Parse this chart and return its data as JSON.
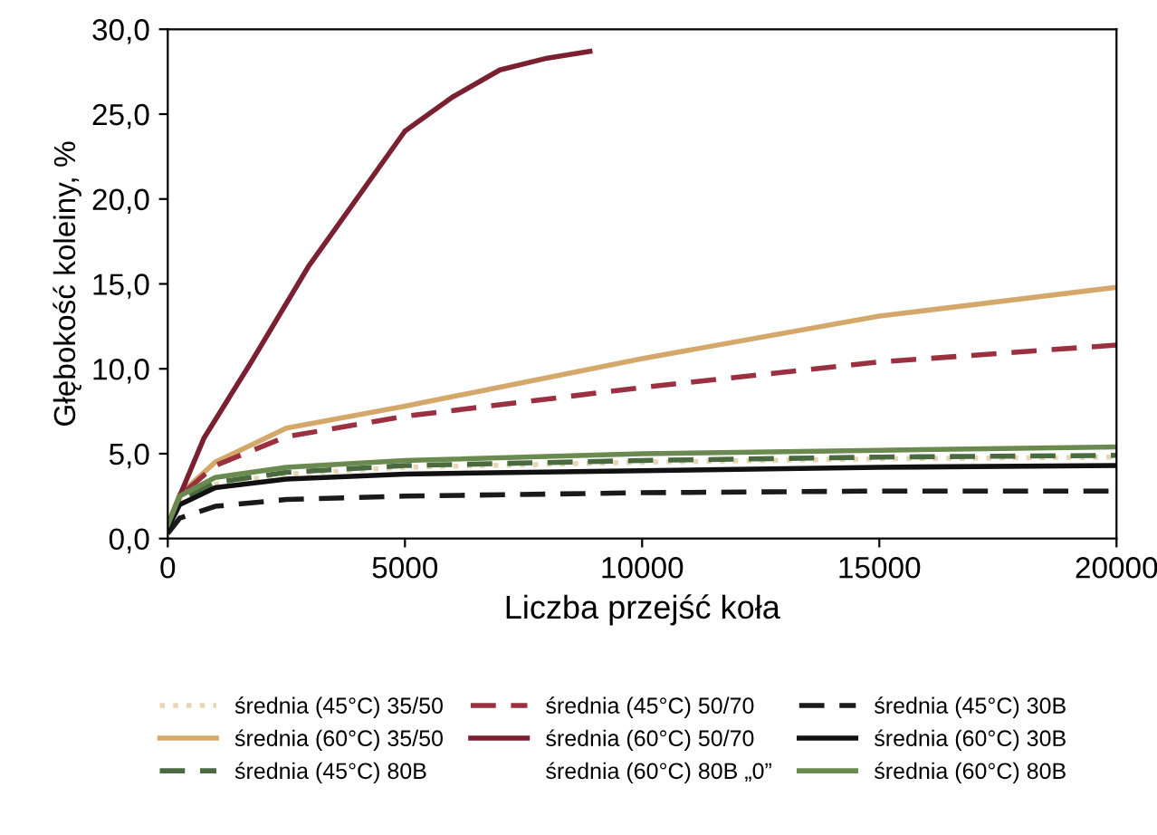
{
  "chart_data": {
    "type": "line",
    "xlabel": "Liczba przejść koła",
    "ylabel": "Głębokość koleiny, %",
    "xlim": [
      0,
      20000
    ],
    "xticks": [
      0,
      5000,
      10000,
      15000,
      20000
    ],
    "ylim": [
      0,
      30
    ],
    "yticks": [
      {
        "value": 0,
        "label": "0,0"
      },
      {
        "value": 5,
        "label": "5,0"
      },
      {
        "value": 10,
        "label": "10,0"
      },
      {
        "value": 15,
        "label": "15,0"
      },
      {
        "value": 20,
        "label": "20,0"
      },
      {
        "value": 25,
        "label": "25,0"
      },
      {
        "value": 30,
        "label": "30,0"
      }
    ],
    "grid": false,
    "legend": "bottom",
    "marker": "none",
    "x": [
      0,
      250,
      1000,
      2500,
      5000,
      10000,
      15000,
      20000
    ],
    "series": [
      {
        "name": "średnia (45°C) 35/50",
        "color": "#e6d6b4",
        "line_style": "dotted",
        "values": [
          0.7,
          2.2,
          3.2,
          3.8,
          4.2,
          4.5,
          4.7,
          4.8
        ]
      },
      {
        "name": "średnia (60°C) 35/50",
        "color": "#d4a86a",
        "line_style": "solid",
        "values": [
          0.8,
          2.6,
          4.5,
          6.5,
          7.8,
          10.6,
          13.1,
          14.8
        ]
      },
      {
        "name": "średnia (45°C) 80B",
        "color": "#4a6a40",
        "line_style": "dashed",
        "values": [
          0.7,
          2.3,
          3.3,
          3.9,
          4.3,
          4.6,
          4.8,
          4.9
        ]
      },
      {
        "name": "średnia (45°C) 50/70",
        "color": "#9b3040",
        "line_style": "dashed",
        "values": [
          0.8,
          2.5,
          4.3,
          6.0,
          7.2,
          8.9,
          10.4,
          11.4
        ]
      },
      {
        "name": "średnia (60°C) 50/70",
        "color": "#7a2030",
        "line_style": "solid",
        "x": [
          0,
          250,
          760,
          1760,
          2960,
          5000,
          6000,
          7000,
          8000,
          8900
        ],
        "values": [
          0.5,
          2.5,
          5.9,
          10.4,
          16,
          24,
          26,
          27.6,
          28.3,
          28.7
        ]
      },
      {
        "name": "średnia (60°C) 80B „0”",
        "line_style": "solid",
        "values": [
          null,
          null,
          null,
          null,
          null,
          null,
          null,
          null
        ]
      },
      {
        "name": "średnia (45°C) 30B",
        "color": "#1a1a1a",
        "line_style": "dashed",
        "values": [
          0.3,
          1.2,
          1.9,
          2.3,
          2.5,
          2.7,
          2.8,
          2.8
        ]
      },
      {
        "name": "średnia (60°C) 30B",
        "color": "#111111",
        "line_style": "solid",
        "values": [
          0.6,
          2.0,
          3.0,
          3.5,
          3.8,
          4.0,
          4.2,
          4.3
        ]
      },
      {
        "name": "średnia (60°C) 80B",
        "color": "#6a8a50",
        "line_style": "solid",
        "values": [
          0.8,
          2.5,
          3.6,
          4.2,
          4.6,
          5.0,
          5.2,
          5.4
        ]
      }
    ]
  }
}
